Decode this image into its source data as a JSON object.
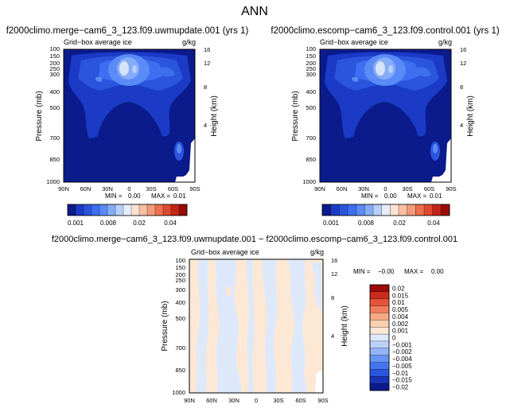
{
  "page_title": "ANN",
  "diff_title": "f2000climo.merge−cam6_3_123.f09.uwmupdate.001 − f2000climo.escomp−cam6_3_123.f09.control.001",
  "colors": {
    "abs_scale": [
      "#0b1b8c",
      "#1b3bc7",
      "#2b55dc",
      "#3e6ff0",
      "#5a8bf6",
      "#86acf8",
      "#b8cff9",
      "#e6eefb",
      "#fde3d3",
      "#f8c0a3",
      "#f39a78",
      "#ec6f4f",
      "#df4a2f",
      "#c52517",
      "#9a0b08"
    ],
    "diff_scale": [
      "#0b1b8c",
      "#1733b8",
      "#2b55dc",
      "#4575ee",
      "#6994f5",
      "#93b4f8",
      "#bcd2fa",
      "#dde9fb",
      "#fde8d6",
      "#fbcfb0",
      "#f6a986",
      "#ef7e5c",
      "#e4543a",
      "#ca2c1d",
      "#9a0b08"
    ]
  },
  "chart_data": [
    {
      "type": "contour",
      "panel": "left",
      "title": "f2000climo.merge−cam6_3_123.f09.uwmupdate.001 (yrs 1)",
      "subtitle_left": "Grid−box average ice",
      "subtitle_right": "g/kg",
      "ylabel": "Pressure (mb)",
      "y2label": "Height (km)",
      "yticks": [
        "100",
        "150",
        "200",
        "250",
        "300",
        "400",
        "500",
        "700",
        "850",
        "1000"
      ],
      "y2ticks": [
        "16",
        "12",
        "8",
        "4"
      ],
      "xticks": [
        "90N",
        "60N",
        "30N",
        "0",
        "30S",
        "60S",
        "90S"
      ],
      "min_label": "MIN =",
      "min_value": "0.00",
      "max_label": "MAX =",
      "max_value": "0.01",
      "colorbar_labels": [
        "0.001",
        "0.008",
        "0.02",
        "0.04"
      ]
    },
    {
      "type": "contour",
      "panel": "right",
      "title": "f2000climo.escomp−cam6_3_123.f09.control.001 (yrs 1)",
      "subtitle_left": "Grid−box average ice",
      "subtitle_right": "g/kg",
      "ylabel": "Pressure (mb)",
      "y2label": "Height (km)",
      "yticks": [
        "100",
        "150",
        "200",
        "250",
        "300",
        "400",
        "500",
        "700",
        "850",
        "1000"
      ],
      "y2ticks": [
        "16",
        "12",
        "8",
        "4"
      ],
      "xticks": [
        "90N",
        "60N",
        "30N",
        "0",
        "30S",
        "60S",
        "90S"
      ],
      "min_label": "MIN =",
      "min_value": "0.00",
      "max_label": "MAX =",
      "max_value": "0.01",
      "colorbar_labels": [
        "0.001",
        "0.008",
        "0.02",
        "0.04"
      ]
    },
    {
      "type": "contour",
      "panel": "difference",
      "subtitle_left": "Grid−box average ice",
      "subtitle_right": "g/kg",
      "ylabel": "Pressure (mb)",
      "y2label": "Height (km)",
      "yticks": [
        "100",
        "150",
        "200",
        "250",
        "300",
        "400",
        "500",
        "700",
        "850",
        "1000"
      ],
      "y2ticks": [
        "16",
        "12",
        "8",
        "4"
      ],
      "xticks": [
        "90N",
        "60N",
        "30N",
        "0",
        "30S",
        "60S",
        "90S"
      ],
      "min_label": "MIN =",
      "min_value": "−0.00",
      "max_label": "MAX =",
      "max_value": "0.00",
      "colorbar_labels": [
        "0.02",
        "0.015",
        "0.01",
        "0.005",
        "0.004",
        "0.002",
        "0.001",
        "0",
        "−0.001",
        "−0.002",
        "−0.004",
        "−0.005",
        "−0.01",
        "−0.015",
        "−0.02"
      ]
    }
  ]
}
